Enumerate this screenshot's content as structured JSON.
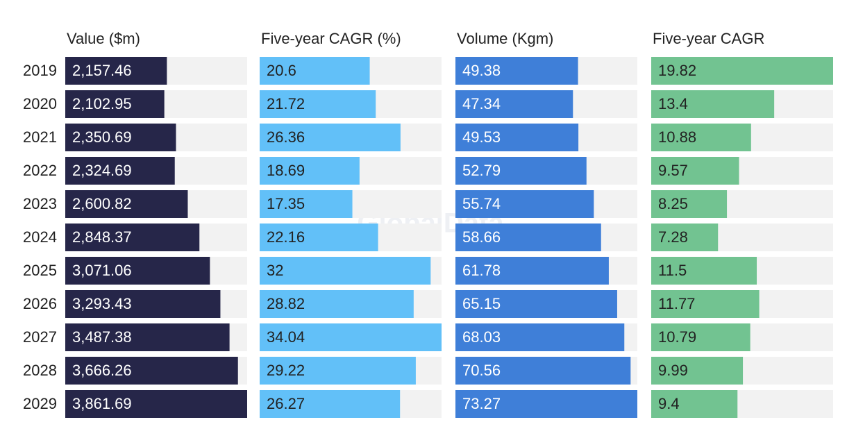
{
  "watermark": "GlobalData",
  "chart_data": [
    {
      "type": "bar",
      "orientation": "horizontal",
      "title": "Value ($m)",
      "color": "#262649",
      "label_color": "#ffffff",
      "categories": [
        "2019",
        "2020",
        "2021",
        "2022",
        "2023",
        "2024",
        "2025",
        "2026",
        "2027",
        "2028",
        "2029"
      ],
      "values": [
        2157.46,
        2102.95,
        2350.69,
        2324.69,
        2600.82,
        2848.37,
        3071.06,
        3293.43,
        3487.38,
        3666.26,
        3861.69
      ],
      "value_labels": [
        "2,157.46",
        "2,102.95",
        "2,350.69",
        "2,324.69",
        "2,600.82",
        "2,848.37",
        "3,071.06",
        "3,293.43",
        "3,487.38",
        "3,666.26",
        "3,861.69"
      ],
      "xlim": [
        0,
        3861.69
      ]
    },
    {
      "type": "bar",
      "orientation": "horizontal",
      "title": "Five-year CAGR (%)",
      "color": "#62c0f8",
      "label_color": "#222222",
      "values": [
        20.6,
        21.72,
        26.36,
        18.69,
        17.35,
        22.16,
        32,
        28.82,
        34.04,
        29.22,
        26.27
      ],
      "xlim": [
        0,
        34.04
      ]
    },
    {
      "type": "bar",
      "orientation": "horizontal",
      "title": "Volume (Kgm)",
      "color": "#3f7fd8",
      "label_color": "#ffffff",
      "values": [
        49.38,
        47.34,
        49.53,
        52.79,
        55.74,
        58.66,
        61.78,
        65.15,
        68.03,
        70.56,
        73.27
      ],
      "xlim": [
        0,
        73.27
      ]
    },
    {
      "type": "bar",
      "orientation": "horizontal",
      "title": "Five-year CAGR",
      "color": "#72c391",
      "label_color": "#222222",
      "values": [
        19.82,
        13.4,
        10.88,
        9.57,
        8.25,
        7.28,
        11.5,
        11.77,
        10.79,
        9.99,
        9.4
      ],
      "xlim": [
        0,
        19.82
      ]
    }
  ]
}
